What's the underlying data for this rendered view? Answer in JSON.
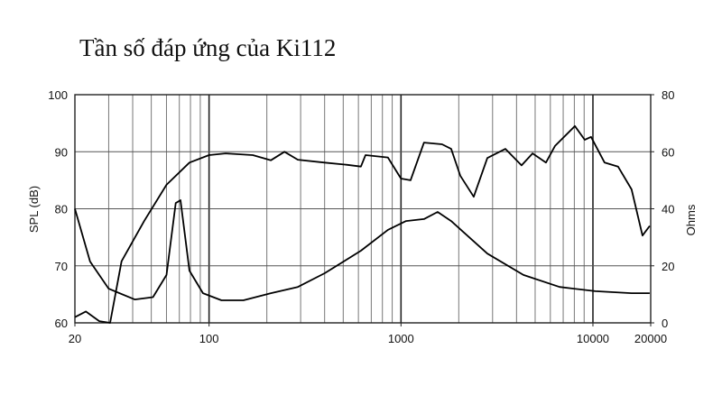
{
  "chart_data": {
    "type": "line",
    "title": "Tần số đáp ứng của Ki112",
    "ylabel": "SPL (dB)",
    "y2label": "Ohms",
    "xscale": "log",
    "xlim": [
      20,
      20000
    ],
    "ylim": [
      60,
      100
    ],
    "y2lim": [
      0,
      80
    ],
    "xticks": [
      20,
      100,
      1000,
      10000,
      20000
    ],
    "xminor_grid": [
      30,
      40,
      50,
      60,
      70,
      80,
      90,
      200,
      300,
      400,
      500,
      600,
      700,
      800,
      900,
      2000,
      3000,
      4000,
      5000,
      6000,
      7000,
      8000,
      9000
    ],
    "xmajor_grid": [
      100,
      1000,
      10000
    ],
    "yticks": [
      60,
      70,
      80,
      90,
      100
    ],
    "y2ticks": [
      0,
      20,
      40,
      60,
      80
    ],
    "grid": true,
    "series": [
      {
        "color": "#000000",
        "x": [
          20,
          22.8,
          26.8,
          30.5,
          35,
          46,
          60,
          79,
          100,
          122,
          169,
          210,
          247,
          290,
          400,
          526,
          618,
          653,
          855,
          1000,
          1122,
          1318,
          1637,
          1826,
          2037,
          2394,
          2818,
          3500,
          4246,
          4845,
          5688,
          6340,
          8054,
          9060,
          9780,
          11500,
          13520,
          15900,
          18120,
          19760
        ],
        "values": [
          61,
          62,
          60.3,
          60,
          70.8,
          77.9,
          84.2,
          88.1,
          89.4,
          89.7,
          89.4,
          88.5,
          90,
          88.6,
          88.1,
          87.7,
          87.4,
          89.4,
          89,
          85.3,
          85,
          91.6,
          91.3,
          90.5,
          85.8,
          82.1,
          88.9,
          90.5,
          87.6,
          89.7,
          88.1,
          91,
          94.5,
          92.1,
          92.6,
          88.1,
          87.4,
          83.4,
          75.3,
          77
        ]
      },
      {
        "color": "#000000",
        "axis": "y2",
        "x": [
          20,
          24,
          30,
          41,
          51,
          60,
          67,
          71,
          79,
          93,
          116,
          151,
          210,
          290,
          400,
          618,
          855,
          1062,
          1318,
          1552,
          1826,
          2818,
          4347,
          6700,
          10300,
          15900,
          19760
        ],
        "values": [
          40,
          21.5,
          12,
          8.2,
          9,
          16.8,
          42,
          43,
          18.3,
          10.4,
          7.9,
          7.9,
          10.4,
          12.6,
          17.4,
          25.3,
          32.6,
          35.7,
          36.4,
          38.9,
          35.7,
          24.3,
          16.8,
          12.6,
          11.1,
          10.4,
          10.4
        ]
      }
    ]
  }
}
